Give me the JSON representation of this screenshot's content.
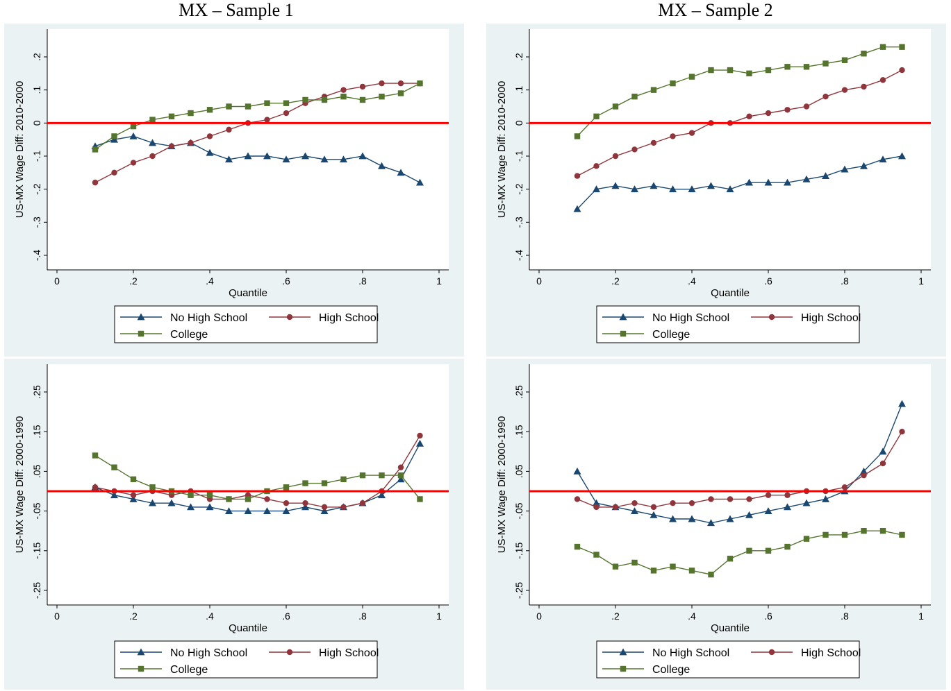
{
  "titles": {
    "left": "MX – Sample 1",
    "right": "MX – Sample 2"
  },
  "colors": {
    "no_hs": "#1a476f",
    "hs": "#90353b",
    "college": "#55752f",
    "zero": "#ff0000",
    "panel_bg": "#eaf2f3"
  },
  "legend": {
    "no_hs": "No High School",
    "hs": "High School",
    "college": "College"
  },
  "chart_data": [
    {
      "type": "line",
      "panel": "top-left",
      "xlabel": "Quantile",
      "ylabel": "US-MX Wage Diff: 2010-2000",
      "xlim": [
        0,
        1
      ],
      "ylim": [
        -0.4,
        0.2
      ],
      "xticks": [
        0,
        0.2,
        0.4,
        0.6,
        0.8,
        1
      ],
      "xtick_labels": [
        "0",
        ".2",
        ".4",
        ".6",
        ".8",
        "1"
      ],
      "yticks": [
        -0.4,
        -0.3,
        -0.2,
        -0.1,
        0,
        0.1,
        0.2
      ],
      "ytick_labels": [
        "-.4",
        "-.3",
        "-.2",
        "-.1",
        "0",
        ".1",
        ".2"
      ],
      "hline": 0,
      "series": [
        {
          "name": "No High School",
          "key": "no_hs",
          "x": [
            0.1,
            0.15,
            0.2,
            0.25,
            0.3,
            0.35,
            0.4,
            0.45,
            0.5,
            0.55,
            0.6,
            0.65,
            0.7,
            0.75,
            0.8,
            0.85,
            0.9,
            0.95
          ],
          "y": [
            -0.07,
            -0.05,
            -0.04,
            -0.06,
            -0.07,
            -0.06,
            -0.09,
            -0.11,
            -0.1,
            -0.1,
            -0.11,
            -0.1,
            -0.11,
            -0.11,
            -0.1,
            -0.13,
            -0.15,
            -0.18
          ]
        },
        {
          "name": "High School",
          "key": "hs",
          "x": [
            0.1,
            0.15,
            0.2,
            0.25,
            0.3,
            0.35,
            0.4,
            0.45,
            0.5,
            0.55,
            0.6,
            0.65,
            0.7,
            0.75,
            0.8,
            0.85,
            0.9,
            0.95
          ],
          "y": [
            -0.18,
            -0.15,
            -0.12,
            -0.1,
            -0.07,
            -0.06,
            -0.04,
            -0.02,
            0.0,
            0.01,
            0.03,
            0.06,
            0.08,
            0.1,
            0.11,
            0.12,
            0.12,
            0.12
          ]
        },
        {
          "name": "College",
          "key": "college",
          "x": [
            0.1,
            0.15,
            0.2,
            0.25,
            0.3,
            0.35,
            0.4,
            0.45,
            0.5,
            0.55,
            0.6,
            0.65,
            0.7,
            0.75,
            0.8,
            0.85,
            0.9,
            0.95
          ],
          "y": [
            -0.08,
            -0.04,
            -0.01,
            0.01,
            0.02,
            0.03,
            0.04,
            0.05,
            0.05,
            0.06,
            0.06,
            0.07,
            0.07,
            0.08,
            0.07,
            0.08,
            0.09,
            0.12
          ]
        }
      ]
    },
    {
      "type": "line",
      "panel": "top-right",
      "xlabel": "Quantile",
      "ylabel": "US-MX Wage Diff: 2010-2000",
      "xlim": [
        0,
        1
      ],
      "ylim": [
        -0.4,
        0.2
      ],
      "xticks": [
        0,
        0.2,
        0.4,
        0.6,
        0.8,
        1
      ],
      "xtick_labels": [
        "0",
        ".2",
        ".4",
        ".6",
        ".8",
        "1"
      ],
      "yticks": [
        -0.4,
        -0.3,
        -0.2,
        -0.1,
        0,
        0.1,
        0.2
      ],
      "ytick_labels": [
        "-.4",
        "-.3",
        "-.2",
        "-.1",
        "0",
        ".1",
        ".2"
      ],
      "hline": 0,
      "series": [
        {
          "name": "No High School",
          "key": "no_hs",
          "x": [
            0.1,
            0.15,
            0.2,
            0.25,
            0.3,
            0.35,
            0.4,
            0.45,
            0.5,
            0.55,
            0.6,
            0.65,
            0.7,
            0.75,
            0.8,
            0.85,
            0.9,
            0.95
          ],
          "y": [
            -0.26,
            -0.2,
            -0.19,
            -0.2,
            -0.19,
            -0.2,
            -0.2,
            -0.19,
            -0.2,
            -0.18,
            -0.18,
            -0.18,
            -0.17,
            -0.16,
            -0.14,
            -0.13,
            -0.11,
            -0.1
          ]
        },
        {
          "name": "High School",
          "key": "hs",
          "x": [
            0.1,
            0.15,
            0.2,
            0.25,
            0.3,
            0.35,
            0.4,
            0.45,
            0.5,
            0.55,
            0.6,
            0.65,
            0.7,
            0.75,
            0.8,
            0.85,
            0.9,
            0.95
          ],
          "y": [
            -0.16,
            -0.13,
            -0.1,
            -0.08,
            -0.06,
            -0.04,
            -0.03,
            0.0,
            0.0,
            0.02,
            0.03,
            0.04,
            0.05,
            0.08,
            0.1,
            0.11,
            0.13,
            0.16
          ]
        },
        {
          "name": "College",
          "key": "college",
          "x": [
            0.1,
            0.15,
            0.2,
            0.25,
            0.3,
            0.35,
            0.4,
            0.45,
            0.5,
            0.55,
            0.6,
            0.65,
            0.7,
            0.75,
            0.8,
            0.85,
            0.9,
            0.95
          ],
          "y": [
            -0.04,
            0.02,
            0.05,
            0.08,
            0.1,
            0.12,
            0.14,
            0.16,
            0.16,
            0.15,
            0.16,
            0.17,
            0.17,
            0.18,
            0.19,
            0.21,
            0.23,
            0.23
          ]
        }
      ]
    },
    {
      "type": "line",
      "panel": "bottom-left",
      "xlabel": "Quantile",
      "ylabel": "US-MX Wage Diff: 2000-1990",
      "xlim": [
        0,
        1
      ],
      "ylim": [
        -0.25,
        0.25
      ],
      "xticks": [
        0,
        0.2,
        0.4,
        0.6,
        0.8,
        1
      ],
      "xtick_labels": [
        "0",
        ".2",
        ".4",
        ".6",
        ".8",
        "1"
      ],
      "yticks": [
        -0.25,
        -0.15,
        -0.05,
        0.05,
        0.15,
        0.25
      ],
      "ytick_labels": [
        "-.25",
        "-.15",
        "-.05",
        ".05",
        ".15",
        ".25"
      ],
      "hline": 0,
      "series": [
        {
          "name": "No High School",
          "key": "no_hs",
          "x": [
            0.1,
            0.15,
            0.2,
            0.25,
            0.3,
            0.35,
            0.4,
            0.45,
            0.5,
            0.55,
            0.6,
            0.65,
            0.7,
            0.75,
            0.8,
            0.85,
            0.9,
            0.95
          ],
          "y": [
            0.01,
            -0.01,
            -0.02,
            -0.03,
            -0.03,
            -0.04,
            -0.04,
            -0.05,
            -0.05,
            -0.05,
            -0.05,
            -0.04,
            -0.05,
            -0.04,
            -0.03,
            -0.01,
            0.03,
            0.12
          ]
        },
        {
          "name": "High School",
          "key": "hs",
          "x": [
            0.1,
            0.15,
            0.2,
            0.25,
            0.3,
            0.35,
            0.4,
            0.45,
            0.5,
            0.55,
            0.6,
            0.65,
            0.7,
            0.75,
            0.8,
            0.85,
            0.9,
            0.95
          ],
          "y": [
            0.01,
            0.0,
            -0.01,
            0.0,
            -0.01,
            0.0,
            -0.02,
            -0.02,
            -0.01,
            -0.02,
            -0.03,
            -0.03,
            -0.04,
            -0.04,
            -0.03,
            0.0,
            0.06,
            0.14
          ]
        },
        {
          "name": "College",
          "key": "college",
          "x": [
            0.1,
            0.15,
            0.2,
            0.25,
            0.3,
            0.35,
            0.4,
            0.45,
            0.5,
            0.55,
            0.6,
            0.65,
            0.7,
            0.75,
            0.8,
            0.85,
            0.9,
            0.95
          ],
          "y": [
            0.09,
            0.06,
            0.03,
            0.01,
            0.0,
            -0.01,
            -0.01,
            -0.02,
            -0.02,
            0.0,
            0.01,
            0.02,
            0.02,
            0.03,
            0.04,
            0.04,
            0.04,
            -0.02
          ]
        }
      ]
    },
    {
      "type": "line",
      "panel": "bottom-right",
      "xlabel": "Quantile",
      "ylabel": "US-MX Wage Diff: 2000-1990",
      "xlim": [
        0,
        1
      ],
      "ylim": [
        -0.25,
        0.25
      ],
      "xticks": [
        0,
        0.2,
        0.4,
        0.6,
        0.8,
        1
      ],
      "xtick_labels": [
        "0",
        ".2",
        ".4",
        ".6",
        ".8",
        "1"
      ],
      "yticks": [
        -0.25,
        -0.15,
        -0.05,
        0.05,
        0.15,
        0.25
      ],
      "ytick_labels": [
        "-.25",
        "-.15",
        "-.05",
        ".05",
        ".15",
        ".25"
      ],
      "hline": 0,
      "series": [
        {
          "name": "No High School",
          "key": "no_hs",
          "x": [
            0.1,
            0.15,
            0.2,
            0.25,
            0.3,
            0.35,
            0.4,
            0.45,
            0.5,
            0.55,
            0.6,
            0.65,
            0.7,
            0.75,
            0.8,
            0.85,
            0.9,
            0.95
          ],
          "y": [
            0.05,
            -0.03,
            -0.04,
            -0.05,
            -0.06,
            -0.07,
            -0.07,
            -0.08,
            -0.07,
            -0.06,
            -0.05,
            -0.04,
            -0.03,
            -0.02,
            0.0,
            0.05,
            0.1,
            0.22
          ]
        },
        {
          "name": "High School",
          "key": "hs",
          "x": [
            0.1,
            0.15,
            0.2,
            0.25,
            0.3,
            0.35,
            0.4,
            0.45,
            0.5,
            0.55,
            0.6,
            0.65,
            0.7,
            0.75,
            0.8,
            0.85,
            0.9,
            0.95
          ],
          "y": [
            -0.02,
            -0.04,
            -0.04,
            -0.03,
            -0.04,
            -0.03,
            -0.03,
            -0.02,
            -0.02,
            -0.02,
            -0.01,
            -0.01,
            0.0,
            0.0,
            0.01,
            0.04,
            0.07,
            0.15
          ]
        },
        {
          "name": "College",
          "key": "college",
          "x": [
            0.1,
            0.15,
            0.2,
            0.25,
            0.3,
            0.35,
            0.4,
            0.45,
            0.5,
            0.55,
            0.6,
            0.65,
            0.7,
            0.75,
            0.8,
            0.85,
            0.9,
            0.95
          ],
          "y": [
            -0.14,
            -0.16,
            -0.19,
            -0.18,
            -0.2,
            -0.19,
            -0.2,
            -0.21,
            -0.17,
            -0.15,
            -0.15,
            -0.14,
            -0.12,
            -0.11,
            -0.11,
            -0.1,
            -0.1,
            -0.11
          ]
        }
      ]
    }
  ]
}
